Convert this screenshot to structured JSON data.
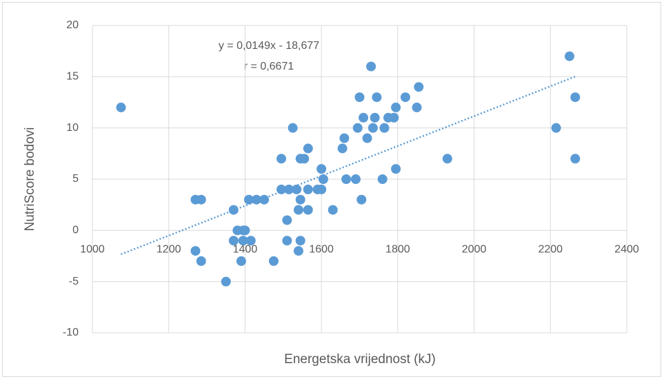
{
  "chart_data": {
    "type": "scatter",
    "xlabel": "Energetska vrijednost (kJ)",
    "ylabel": "NutriScore bodovi",
    "annotations": [
      "y = 0,0149x - 18,677",
      "r = 0,6671"
    ],
    "color": "#5b9bd5",
    "trendline": true,
    "grid": true,
    "xlim": [
      1000,
      2400
    ],
    "xticks": [
      1000,
      1200,
      1400,
      1600,
      1800,
      2000,
      2200,
      2400
    ],
    "ylim": [
      -10,
      20
    ],
    "yticks": [
      -10,
      -5,
      0,
      5,
      10,
      15,
      20
    ],
    "series": [
      {
        "name": null,
        "color": "#5b9bd5",
        "x": [
          1075,
          1270,
          1370,
          1380,
          1395,
          1400,
          1370,
          1395,
          1415,
          1270,
          1285,
          1285,
          1350,
          1390,
          1475,
          1410,
          1430,
          1450,
          1495,
          1515,
          1495,
          1525,
          1510,
          1510,
          1535,
          1545,
          1540,
          1540,
          1545,
          1545,
          1555,
          1565,
          1565,
          1565,
          1590,
          1600,
          1600,
          1605,
          1630,
          1655,
          1660,
          1665,
          1690,
          1695,
          1700,
          1710,
          1705,
          1720,
          1730,
          1735,
          1740,
          1745,
          1760,
          1765,
          1775,
          1790,
          1795,
          1795,
          1820,
          1850,
          1855,
          1930,
          2215,
          2250,
          2265,
          2265
        ],
        "values": [
          12,
          3,
          2,
          0,
          0,
          0,
          -1,
          -1,
          -1,
          -2,
          -3,
          3,
          -5,
          -3,
          -3,
          3,
          3,
          3,
          4,
          4,
          7,
          10,
          1,
          -1,
          4,
          3,
          2,
          -2,
          -1,
          7,
          7,
          8,
          4,
          2,
          4,
          4,
          6,
          5,
          2,
          8,
          9,
          5,
          5,
          10,
          13,
          11,
          3,
          9,
          16,
          10,
          11,
          13,
          5,
          10,
          11,
          11,
          12,
          6,
          13,
          12,
          14,
          7,
          10,
          17,
          13,
          7
        ]
      }
    ]
  }
}
